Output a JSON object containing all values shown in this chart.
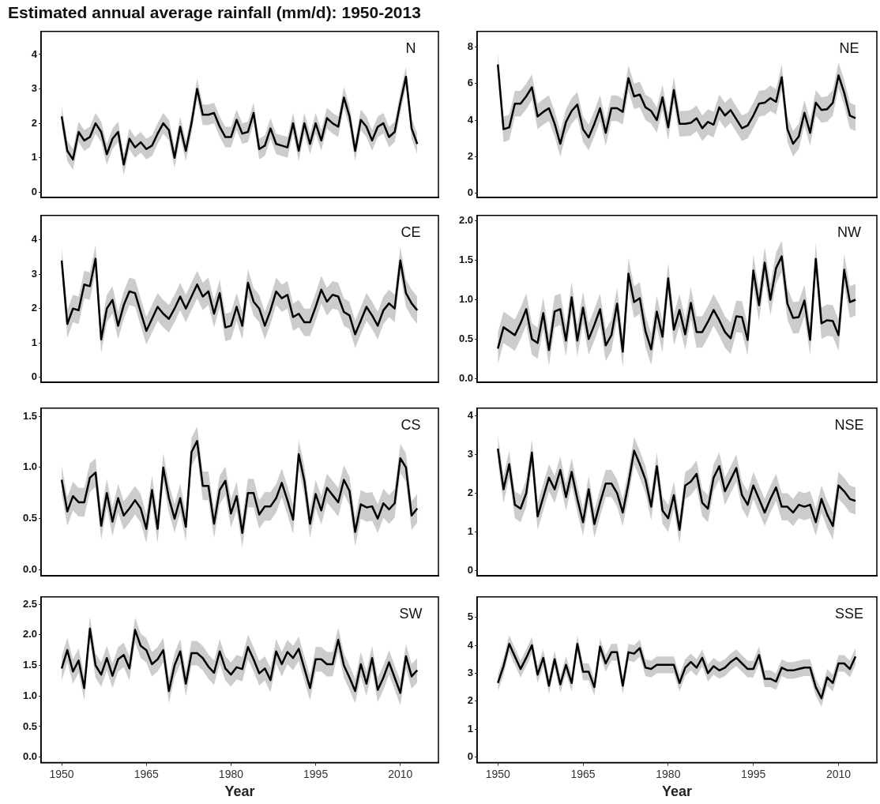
{
  "chart_data": [
    {
      "type": "line",
      "title": "Estimated annual average rainfall (mm/d): 1950-2013",
      "annotations": [
        "N"
      ],
      "tick_labels": "y",
      "xlim": [
        1946.35,
        2016.75
      ],
      "xticks": [
        1950,
        1965,
        1980,
        1995,
        2010
      ],
      "ylim": [
        -0.16,
        4.67
      ],
      "yticks": [
        0,
        1,
        2,
        3,
        4
      ],
      "x": [
        1950,
        1951,
        1952,
        1953,
        1954,
        1955,
        1956,
        1957,
        1958,
        1959,
        1960,
        1961,
        1962,
        1963,
        1964,
        1965,
        1966,
        1967,
        1968,
        1969,
        1970,
        1971,
        1972,
        1973,
        1974,
        1975,
        1976,
        1977,
        1978,
        1979,
        1980,
        1981,
        1982,
        1983,
        1984,
        1985,
        1986,
        1987,
        1988,
        1989,
        1990,
        1991,
        1992,
        1993,
        1994,
        1995,
        1996,
        1997,
        1998,
        1999,
        2000,
        2001,
        2002,
        2003,
        2004,
        2005,
        2006,
        2007,
        2008,
        2009,
        2010,
        2011,
        2012,
        2013
      ],
      "series": [
        {
          "color": "#000000",
          "values": [
            2.2,
            1.2,
            0.95,
            1.75,
            1.5,
            1.6,
            2.0,
            1.75,
            1.1,
            1.55,
            1.75,
            0.8,
            1.55,
            1.3,
            1.45,
            1.25,
            1.35,
            1.7,
            2.0,
            1.8,
            1.0,
            1.9,
            1.2,
            2.0,
            3.0,
            2.25,
            2.25,
            2.3,
            1.9,
            1.6,
            1.6,
            2.1,
            1.7,
            1.75,
            2.3,
            1.25,
            1.35,
            1.85,
            1.4,
            1.35,
            1.3,
            2.0,
            1.2,
            2.0,
            1.4,
            2.0,
            1.5,
            2.15,
            2.0,
            1.9,
            2.75,
            2.2,
            1.2,
            2.1,
            1.9,
            1.5,
            1.9,
            2.0,
            1.6,
            1.75,
            2.6,
            3.35,
            1.85,
            1.4
          ],
          "lower": [
            1.9,
            0.9,
            0.65,
            1.45,
            1.2,
            1.3,
            1.7,
            1.45,
            0.8,
            1.25,
            1.45,
            0.5,
            1.25,
            1.0,
            1.15,
            0.95,
            1.05,
            1.4,
            1.7,
            1.5,
            0.7,
            1.6,
            0.9,
            1.7,
            2.7,
            1.95,
            1.95,
            2.0,
            1.6,
            1.3,
            1.3,
            1.8,
            1.4,
            1.45,
            2.0,
            0.95,
            1.05,
            1.55,
            1.1,
            1.05,
            1.0,
            1.7,
            0.9,
            1.7,
            1.1,
            1.7,
            1.2,
            1.85,
            1.7,
            1.6,
            2.45,
            1.9,
            0.9,
            1.8,
            1.6,
            1.2,
            1.6,
            1.7,
            1.3,
            1.45,
            2.3,
            3.05,
            1.55,
            1.1
          ],
          "upper": [
            2.5,
            1.5,
            1.25,
            2.05,
            1.8,
            1.9,
            2.3,
            2.05,
            1.4,
            1.85,
            2.05,
            1.1,
            1.85,
            1.6,
            1.75,
            1.55,
            1.65,
            2.0,
            2.3,
            2.1,
            1.3,
            2.2,
            1.5,
            2.3,
            3.3,
            2.55,
            2.55,
            2.6,
            2.2,
            1.9,
            1.9,
            2.4,
            2.0,
            2.05,
            2.6,
            1.55,
            1.65,
            2.15,
            1.7,
            1.65,
            1.6,
            2.3,
            1.5,
            2.3,
            1.7,
            2.3,
            1.8,
            2.45,
            2.3,
            2.2,
            3.05,
            2.5,
            1.5,
            2.4,
            2.2,
            1.8,
            2.2,
            2.3,
            1.9,
            2.05,
            2.9,
            3.65,
            2.15,
            1.7
          ]
        }
      ]
    },
    {
      "type": "line",
      "annotations": [
        "NE"
      ],
      "tick_labels": "y",
      "xlim": [
        1946.35,
        2016.75
      ],
      "xticks": [
        1950,
        1965,
        1980,
        1995,
        2010
      ],
      "ylim": [
        -0.25,
        8.86
      ],
      "yticks": [
        0,
        2,
        4,
        6,
        8
      ],
      "x": [
        1950,
        1951,
        1952,
        1953,
        1954,
        1955,
        1956,
        1957,
        1958,
        1959,
        1960,
        1961,
        1962,
        1963,
        1964,
        1965,
        1966,
        1967,
        1968,
        1969,
        1970,
        1971,
        1972,
        1973,
        1974,
        1975,
        1976,
        1977,
        1978,
        1979,
        1980,
        1981,
        1982,
        1983,
        1984,
        1985,
        1986,
        1987,
        1988,
        1989,
        1990,
        1991,
        1992,
        1993,
        1994,
        1995,
        1996,
        1997,
        1998,
        1999,
        2000,
        2001,
        2002,
        2003,
        2004,
        2005,
        2006,
        2007,
        2008,
        2009,
        2010,
        2011,
        2012,
        2013
      ],
      "series": [
        {
          "color": "#000000",
          "values": [
            7.05,
            3.5,
            3.6,
            4.9,
            4.9,
            5.3,
            5.8,
            4.2,
            4.45,
            4.65,
            3.8,
            2.7,
            3.9,
            4.5,
            4.85,
            3.5,
            3.05,
            3.8,
            4.65,
            3.3,
            4.65,
            4.65,
            4.45,
            6.3,
            5.3,
            5.4,
            4.7,
            4.5,
            4.0,
            5.25,
            3.6,
            5.65,
            3.8,
            3.8,
            3.85,
            4.1,
            3.55,
            3.9,
            3.75,
            4.7,
            4.25,
            4.55,
            4.05,
            3.55,
            3.7,
            4.25,
            4.9,
            4.95,
            5.2,
            5.0,
            6.35,
            3.5,
            2.7,
            3.1,
            4.4,
            3.3,
            4.95,
            4.55,
            4.6,
            4.95,
            6.45,
            5.5,
            4.25,
            4.1
          ],
          "lower": [
            6.35,
            2.8,
            2.9,
            4.2,
            4.2,
            4.6,
            5.1,
            3.5,
            3.75,
            3.95,
            3.1,
            2.0,
            3.2,
            3.8,
            4.15,
            2.8,
            2.35,
            3.1,
            3.95,
            2.6,
            3.95,
            3.95,
            3.75,
            5.6,
            4.6,
            4.7,
            4.0,
            3.8,
            3.3,
            4.55,
            2.9,
            4.95,
            3.1,
            3.1,
            3.15,
            3.4,
            2.85,
            3.2,
            3.05,
            4.0,
            3.55,
            3.85,
            3.35,
            2.85,
            3.0,
            3.55,
            4.2,
            4.25,
            4.5,
            4.3,
            5.65,
            2.8,
            2.0,
            2.4,
            3.7,
            2.6,
            4.25,
            3.85,
            3.9,
            4.25,
            5.75,
            4.8,
            3.55,
            3.4
          ],
          "upper": [
            7.75,
            4.2,
            4.3,
            5.6,
            5.6,
            6.0,
            6.5,
            4.9,
            5.15,
            5.35,
            4.5,
            3.4,
            4.6,
            5.2,
            5.55,
            4.2,
            3.75,
            4.5,
            5.35,
            4.0,
            5.35,
            5.35,
            5.15,
            7.0,
            6.0,
            6.1,
            5.4,
            5.2,
            4.7,
            5.95,
            4.3,
            6.35,
            4.5,
            4.5,
            4.55,
            4.8,
            4.25,
            4.6,
            4.45,
            5.4,
            4.95,
            5.25,
            4.75,
            4.25,
            4.4,
            4.95,
            5.6,
            5.65,
            5.9,
            5.7,
            7.05,
            4.2,
            3.4,
            3.8,
            5.1,
            4.0,
            5.65,
            5.25,
            5.3,
            5.65,
            7.15,
            6.2,
            4.95,
            4.8
          ]
        }
      ]
    },
    {
      "type": "line",
      "annotations": [
        "CE"
      ],
      "tick_labels": "y",
      "xlim": [
        1946.35,
        2016.75
      ],
      "xticks": [
        1950,
        1965,
        1980,
        1995,
        2010
      ],
      "ylim": [
        -0.15,
        4.71
      ],
      "yticks": [
        0,
        1,
        2,
        3,
        4
      ],
      "x": [
        1950,
        1951,
        1952,
        1953,
        1954,
        1955,
        1956,
        1957,
        1958,
        1959,
        1960,
        1961,
        1962,
        1963,
        1964,
        1965,
        1966,
        1967,
        1968,
        1969,
        1970,
        1971,
        1972,
        1973,
        1974,
        1975,
        1976,
        1977,
        1978,
        1979,
        1980,
        1981,
        1982,
        1983,
        1984,
        1985,
        1986,
        1987,
        1988,
        1989,
        1990,
        1991,
        1992,
        1993,
        1994,
        1995,
        1996,
        1997,
        1998,
        1999,
        2000,
        2001,
        2002,
        2003,
        2004,
        2005,
        2006,
        2007,
        2008,
        2009,
        2010,
        2011,
        2012,
        2013
      ],
      "series": [
        {
          "color": "#000000",
          "values": [
            3.4,
            1.55,
            2.0,
            1.95,
            2.7,
            2.65,
            3.45,
            1.1,
            2.0,
            2.25,
            1.5,
            2.1,
            2.5,
            2.45,
            1.9,
            1.35,
            1.7,
            2.05,
            1.85,
            1.7,
            2.0,
            2.35,
            2.0,
            2.35,
            2.7,
            2.35,
            2.5,
            1.85,
            2.45,
            1.45,
            1.5,
            2.05,
            1.5,
            2.75,
            2.2,
            2.0,
            1.5,
            1.95,
            2.5,
            2.3,
            2.4,
            1.75,
            1.85,
            1.6,
            1.6,
            2.05,
            2.55,
            2.2,
            2.4,
            2.35,
            1.9,
            1.8,
            1.25,
            1.65,
            2.05,
            1.8,
            1.5,
            1.95,
            2.15,
            2.0,
            3.4,
            2.45,
            2.15,
            1.95
          ],
          "lower": [
            3.0,
            1.15,
            1.6,
            1.55,
            2.3,
            2.25,
            3.05,
            0.7,
            1.6,
            1.85,
            1.1,
            1.7,
            2.1,
            2.05,
            1.5,
            0.95,
            1.3,
            1.65,
            1.45,
            1.3,
            1.6,
            1.95,
            1.6,
            1.95,
            2.3,
            1.95,
            2.1,
            1.45,
            2.05,
            1.05,
            1.1,
            1.65,
            1.1,
            2.35,
            1.8,
            1.6,
            1.1,
            1.55,
            2.1,
            1.9,
            2.0,
            1.35,
            1.45,
            1.2,
            1.2,
            1.65,
            2.15,
            1.8,
            2.0,
            1.95,
            1.5,
            1.4,
            0.85,
            1.25,
            1.65,
            1.4,
            1.1,
            1.55,
            1.75,
            1.6,
            3.0,
            2.05,
            1.75,
            1.55
          ],
          "upper": [
            3.8,
            1.95,
            2.4,
            2.35,
            3.1,
            3.05,
            3.85,
            1.5,
            2.4,
            2.65,
            1.9,
            2.5,
            2.9,
            2.85,
            2.3,
            1.75,
            2.1,
            2.45,
            2.25,
            2.1,
            2.4,
            2.75,
            2.4,
            2.75,
            3.1,
            2.75,
            2.9,
            2.25,
            2.85,
            1.85,
            1.9,
            2.45,
            1.9,
            3.15,
            2.6,
            2.4,
            1.9,
            2.35,
            2.9,
            2.7,
            2.8,
            2.15,
            2.25,
            2.0,
            2.0,
            2.45,
            2.95,
            2.6,
            2.8,
            2.75,
            2.3,
            2.2,
            1.65,
            2.05,
            2.45,
            2.2,
            1.9,
            2.35,
            2.55,
            2.4,
            3.8,
            2.85,
            2.55,
            2.35
          ]
        }
      ]
    },
    {
      "type": "line",
      "annotations": [
        "NW"
      ],
      "tick_labels": "y",
      "xlim": [
        1946.35,
        2016.75
      ],
      "xticks": [
        1950,
        1965,
        1980,
        1995,
        2010
      ],
      "ylim": [
        -0.05,
        2.07
      ],
      "yticks": [
        {
          "value": 0,
          "label": "0.0"
        },
        0.5,
        {
          "value": 1,
          "label": "1.0"
        },
        1.5,
        {
          "value": 2,
          "label": "2.0"
        }
      ],
      "x": [
        1950,
        1951,
        1952,
        1953,
        1954,
        1955,
        1956,
        1957,
        1958,
        1959,
        1960,
        1961,
        1962,
        1963,
        1964,
        1965,
        1966,
        1967,
        1968,
        1969,
        1970,
        1971,
        1972,
        1973,
        1974,
        1975,
        1976,
        1977,
        1978,
        1979,
        1980,
        1981,
        1982,
        1983,
        1984,
        1985,
        1986,
        1987,
        1988,
        1989,
        1990,
        1991,
        1992,
        1993,
        1994,
        1995,
        1996,
        1997,
        1998,
        1999,
        2000,
        2001,
        2002,
        2003,
        2004,
        2005,
        2006,
        2007,
        2008,
        2009,
        2010,
        2011,
        2012,
        2013
      ],
      "series": [
        {
          "color": "#000000",
          "values": [
            0.38,
            0.65,
            0.6,
            0.55,
            0.7,
            0.88,
            0.5,
            0.45,
            0.83,
            0.36,
            0.85,
            0.88,
            0.48,
            1.03,
            0.48,
            0.9,
            0.5,
            0.68,
            0.88,
            0.42,
            0.55,
            0.95,
            0.34,
            1.33,
            0.97,
            1.02,
            0.6,
            0.37,
            0.85,
            0.53,
            1.27,
            0.62,
            0.87,
            0.56,
            0.96,
            0.59,
            0.59,
            0.72,
            0.87,
            0.74,
            0.59,
            0.51,
            0.79,
            0.78,
            0.49,
            1.37,
            0.93,
            1.47,
            1.0,
            1.4,
            1.55,
            0.95,
            0.77,
            0.78,
            0.99,
            0.49,
            1.52,
            0.7,
            0.74,
            0.73,
            0.55,
            1.38,
            0.97,
            1.0
          ],
          "lower": [
            0.18,
            0.45,
            0.4,
            0.35,
            0.5,
            0.68,
            0.3,
            0.25,
            0.63,
            0.16,
            0.65,
            0.68,
            0.28,
            0.83,
            0.28,
            0.7,
            0.3,
            0.48,
            0.68,
            0.22,
            0.35,
            0.75,
            0.14,
            1.13,
            0.77,
            0.82,
            0.4,
            0.17,
            0.65,
            0.33,
            1.07,
            0.42,
            0.67,
            0.36,
            0.76,
            0.39,
            0.39,
            0.52,
            0.67,
            0.54,
            0.39,
            0.31,
            0.59,
            0.58,
            0.29,
            1.17,
            0.73,
            1.27,
            0.8,
            1.2,
            1.35,
            0.75,
            0.57,
            0.58,
            0.79,
            0.29,
            1.32,
            0.5,
            0.54,
            0.53,
            0.35,
            1.18,
            0.77,
            0.8
          ],
          "upper": [
            0.58,
            0.85,
            0.8,
            0.75,
            0.9,
            1.08,
            0.7,
            0.65,
            1.03,
            0.56,
            1.05,
            1.08,
            0.68,
            1.23,
            0.68,
            1.1,
            0.7,
            0.88,
            1.08,
            0.62,
            0.75,
            1.15,
            0.54,
            1.53,
            1.17,
            1.22,
            0.8,
            0.57,
            1.05,
            0.73,
            1.47,
            0.82,
            1.07,
            0.76,
            1.16,
            0.79,
            0.79,
            0.92,
            1.07,
            0.94,
            0.79,
            0.71,
            0.99,
            0.98,
            0.69,
            1.57,
            1.13,
            1.67,
            1.2,
            1.6,
            1.75,
            1.15,
            0.97,
            0.98,
            1.19,
            0.69,
            1.72,
            0.9,
            0.94,
            0.93,
            0.75,
            1.58,
            1.17,
            1.2
          ]
        }
      ]
    },
    {
      "type": "line",
      "annotations": [
        "CS"
      ],
      "tick_labels": "y",
      "xlim": [
        1946.35,
        2016.75
      ],
      "xticks": [
        1950,
        1965,
        1980,
        1995,
        2010
      ],
      "ylim": [
        -0.06,
        1.58
      ],
      "yticks": [
        {
          "value": 0,
          "label": "0.0"
        },
        0.5,
        {
          "value": 1,
          "label": "1.0"
        },
        1.5
      ],
      "x": [
        1950,
        1951,
        1952,
        1953,
        1954,
        1955,
        1956,
        1957,
        1958,
        1959,
        1960,
        1961,
        1962,
        1963,
        1964,
        1965,
        1966,
        1967,
        1968,
        1969,
        1970,
        1971,
        1972,
        1973,
        1974,
        1975,
        1976,
        1977,
        1978,
        1979,
        1980,
        1981,
        1982,
        1983,
        1984,
        1985,
        1986,
        1987,
        1988,
        1989,
        1990,
        1991,
        1992,
        1993,
        1994,
        1995,
        1996,
        1997,
        1998,
        1999,
        2000,
        2001,
        2002,
        2003,
        2004,
        2005,
        2006,
        2007,
        2008,
        2009,
        2010,
        2011,
        2012,
        2013
      ],
      "series": [
        {
          "color": "#000000",
          "values": [
            0.88,
            0.57,
            0.72,
            0.66,
            0.66,
            0.9,
            0.95,
            0.43,
            0.75,
            0.47,
            0.7,
            0.53,
            0.6,
            0.68,
            0.6,
            0.4,
            0.78,
            0.4,
            1.0,
            0.7,
            0.5,
            0.7,
            0.42,
            1.15,
            1.26,
            0.82,
            0.82,
            0.45,
            0.78,
            0.87,
            0.55,
            0.72,
            0.36,
            0.75,
            0.75,
            0.54,
            0.62,
            0.62,
            0.7,
            0.85,
            0.68,
            0.49,
            1.13,
            0.87,
            0.45,
            0.74,
            0.58,
            0.8,
            0.73,
            0.66,
            0.88,
            0.77,
            0.37,
            0.64,
            0.61,
            0.62,
            0.5,
            0.65,
            0.59,
            0.65,
            1.09,
            1.0,
            0.53,
            0.6
          ],
          "lower": [
            0.74,
            0.43,
            0.58,
            0.52,
            0.52,
            0.76,
            0.81,
            0.29,
            0.61,
            0.33,
            0.56,
            0.39,
            0.46,
            0.54,
            0.46,
            0.26,
            0.64,
            0.26,
            0.86,
            0.56,
            0.36,
            0.56,
            0.28,
            1.01,
            1.12,
            0.68,
            0.68,
            0.31,
            0.64,
            0.73,
            0.41,
            0.58,
            0.22,
            0.61,
            0.61,
            0.4,
            0.48,
            0.48,
            0.56,
            0.71,
            0.54,
            0.35,
            0.99,
            0.73,
            0.31,
            0.6,
            0.44,
            0.66,
            0.59,
            0.52,
            0.74,
            0.63,
            0.23,
            0.5,
            0.47,
            0.48,
            0.36,
            0.51,
            0.45,
            0.51,
            0.95,
            0.86,
            0.39,
            0.46
          ],
          "upper": [
            1.02,
            0.71,
            0.86,
            0.8,
            0.8,
            1.04,
            1.09,
            0.57,
            0.89,
            0.61,
            0.84,
            0.67,
            0.74,
            0.82,
            0.74,
            0.54,
            0.92,
            0.54,
            1.14,
            0.84,
            0.64,
            0.84,
            0.56,
            1.29,
            1.4,
            0.96,
            0.96,
            0.59,
            0.92,
            1.01,
            0.69,
            0.86,
            0.5,
            0.89,
            0.89,
            0.68,
            0.76,
            0.76,
            0.84,
            0.99,
            0.82,
            0.63,
            1.27,
            1.01,
            0.59,
            0.88,
            0.72,
            0.94,
            0.87,
            0.8,
            1.02,
            0.91,
            0.51,
            0.78,
            0.75,
            0.76,
            0.64,
            0.79,
            0.73,
            0.79,
            1.23,
            1.14,
            0.67,
            0.74
          ]
        }
      ]
    },
    {
      "type": "line",
      "annotations": [
        "NSE"
      ],
      "tick_labels": "y",
      "xlim": [
        1946.35,
        2016.75
      ],
      "xticks": [
        1950,
        1965,
        1980,
        1995,
        2010
      ],
      "ylim": [
        -0.14,
        4.2
      ],
      "yticks": [
        0,
        1,
        2,
        3,
        4
      ],
      "x": [
        1950,
        1951,
        1952,
        1953,
        1954,
        1955,
        1956,
        1957,
        1958,
        1959,
        1960,
        1961,
        1962,
        1963,
        1964,
        1965,
        1966,
        1967,
        1968,
        1969,
        1970,
        1971,
        1972,
        1973,
        1974,
        1975,
        1976,
        1977,
        1978,
        1979,
        1980,
        1981,
        1982,
        1983,
        1984,
        1985,
        1986,
        1987,
        1988,
        1989,
        1990,
        1991,
        1992,
        1993,
        1994,
        1995,
        1996,
        1997,
        1998,
        1999,
        2000,
        2001,
        2002,
        2003,
        2004,
        2005,
        2006,
        2007,
        2008,
        2009,
        2010,
        2011,
        2012,
        2013
      ],
      "series": [
        {
          "color": "#000000",
          "values": [
            3.15,
            2.1,
            2.75,
            1.7,
            1.6,
            2.0,
            3.05,
            1.4,
            1.9,
            2.4,
            2.1,
            2.6,
            1.9,
            2.55,
            1.85,
            1.25,
            2.1,
            1.2,
            1.75,
            2.25,
            2.25,
            2.0,
            1.5,
            2.25,
            3.1,
            2.75,
            2.35,
            1.65,
            2.7,
            1.55,
            1.35,
            1.95,
            1.05,
            2.2,
            2.3,
            2.5,
            1.75,
            1.6,
            2.4,
            2.7,
            2.05,
            2.35,
            2.65,
            1.95,
            1.7,
            2.2,
            1.85,
            1.5,
            1.85,
            2.15,
            1.65,
            1.65,
            1.5,
            1.7,
            1.65,
            1.7,
            1.25,
            1.85,
            1.45,
            1.15,
            2.2,
            2.05,
            1.85,
            1.8
          ],
          "lower": [
            2.8,
            1.75,
            2.4,
            1.35,
            1.25,
            1.65,
            2.7,
            1.05,
            1.55,
            2.05,
            1.75,
            2.25,
            1.55,
            2.2,
            1.5,
            0.9,
            1.75,
            0.85,
            1.4,
            1.9,
            1.9,
            1.65,
            1.15,
            1.9,
            2.75,
            2.4,
            2.0,
            1.3,
            2.35,
            1.2,
            1.0,
            1.6,
            0.7,
            1.85,
            1.95,
            2.15,
            1.4,
            1.25,
            2.05,
            2.35,
            1.7,
            2.0,
            2.3,
            1.6,
            1.35,
            1.85,
            1.5,
            1.15,
            1.5,
            1.8,
            1.3,
            1.3,
            1.15,
            1.35,
            1.3,
            1.35,
            0.9,
            1.5,
            1.1,
            0.8,
            1.85,
            1.7,
            1.5,
            1.45
          ],
          "upper": [
            3.5,
            2.45,
            3.1,
            2.05,
            1.95,
            2.35,
            3.4,
            1.75,
            2.25,
            2.75,
            2.45,
            2.95,
            2.25,
            2.9,
            2.2,
            1.6,
            2.45,
            1.55,
            2.1,
            2.6,
            2.6,
            2.35,
            1.85,
            2.6,
            3.45,
            3.1,
            2.7,
            2.0,
            3.05,
            1.9,
            1.7,
            2.3,
            1.4,
            2.55,
            2.65,
            2.85,
            2.1,
            1.95,
            2.75,
            3.05,
            2.4,
            2.7,
            3.0,
            2.3,
            2.05,
            2.55,
            2.2,
            1.85,
            2.2,
            2.5,
            2.0,
            2.0,
            1.85,
            2.05,
            2.0,
            2.05,
            1.6,
            2.2,
            1.8,
            1.5,
            2.55,
            2.4,
            2.2,
            2.15
          ]
        }
      ]
    },
    {
      "type": "line",
      "annotations": [
        "SW"
      ],
      "xlabel": "Year",
      "xlim": [
        1946.35,
        2016.75
      ],
      "xticks": [
        1950,
        1965,
        1980,
        1995,
        2010
      ],
      "ylim": [
        -0.09,
        2.62
      ],
      "yticks": [
        {
          "value": 0,
          "label": "0.0"
        },
        0.5,
        {
          "value": 1,
          "label": "1.0"
        },
        1.5,
        {
          "value": 2,
          "label": "2.0"
        },
        2.5
      ],
      "x": [
        1950,
        1951,
        1952,
        1953,
        1954,
        1955,
        1956,
        1957,
        1958,
        1959,
        1960,
        1961,
        1962,
        1963,
        1964,
        1965,
        1966,
        1967,
        1968,
        1969,
        1970,
        1971,
        1972,
        1973,
        1974,
        1975,
        1976,
        1977,
        1978,
        1979,
        1980,
        1981,
        1982,
        1983,
        1984,
        1985,
        1986,
        1987,
        1988,
        1989,
        1990,
        1991,
        1992,
        1993,
        1994,
        1995,
        1996,
        1997,
        1998,
        1999,
        2000,
        2001,
        2002,
        2003,
        2004,
        2005,
        2006,
        2007,
        2008,
        2009,
        2010,
        2011,
        2012,
        2013
      ],
      "series": [
        {
          "color": "#000000",
          "values": [
            1.45,
            1.75,
            1.4,
            1.58,
            1.13,
            2.1,
            1.5,
            1.35,
            1.62,
            1.33,
            1.6,
            1.67,
            1.45,
            2.08,
            1.82,
            1.75,
            1.52,
            1.6,
            1.75,
            1.08,
            1.5,
            1.73,
            1.2,
            1.7,
            1.7,
            1.62,
            1.48,
            1.38,
            1.73,
            1.45,
            1.35,
            1.47,
            1.44,
            1.8,
            1.6,
            1.37,
            1.45,
            1.26,
            1.73,
            1.52,
            1.72,
            1.62,
            1.77,
            1.45,
            1.13,
            1.6,
            1.6,
            1.52,
            1.52,
            1.92,
            1.5,
            1.3,
            1.08,
            1.52,
            1.2,
            1.62,
            1.1,
            1.3,
            1.55,
            1.3,
            1.05,
            1.65,
            1.32,
            1.42
          ],
          "lower": [
            1.25,
            1.55,
            1.2,
            1.38,
            0.93,
            1.9,
            1.3,
            1.15,
            1.42,
            1.13,
            1.4,
            1.47,
            1.25,
            1.88,
            1.62,
            1.55,
            1.32,
            1.4,
            1.55,
            0.88,
            1.3,
            1.53,
            1.0,
            1.5,
            1.5,
            1.42,
            1.28,
            1.18,
            1.53,
            1.25,
            1.15,
            1.27,
            1.24,
            1.6,
            1.4,
            1.17,
            1.25,
            1.06,
            1.53,
            1.32,
            1.52,
            1.42,
            1.57,
            1.25,
            0.93,
            1.4,
            1.4,
            1.32,
            1.32,
            1.72,
            1.3,
            1.1,
            0.88,
            1.32,
            1.0,
            1.42,
            0.9,
            1.1,
            1.35,
            1.1,
            0.85,
            1.45,
            1.12,
            1.22
          ],
          "upper": [
            1.65,
            1.95,
            1.6,
            1.78,
            1.33,
            2.3,
            1.7,
            1.55,
            1.82,
            1.53,
            1.8,
            1.87,
            1.65,
            2.28,
            2.02,
            1.95,
            1.72,
            1.8,
            1.95,
            1.28,
            1.7,
            1.93,
            1.4,
            1.9,
            1.9,
            1.82,
            1.68,
            1.58,
            1.93,
            1.65,
            1.55,
            1.67,
            1.64,
            2.0,
            1.8,
            1.57,
            1.65,
            1.46,
            1.93,
            1.72,
            1.92,
            1.82,
            1.97,
            1.65,
            1.33,
            1.8,
            1.8,
            1.72,
            1.72,
            2.12,
            1.7,
            1.5,
            1.28,
            1.72,
            1.4,
            1.82,
            1.3,
            1.5,
            1.75,
            1.5,
            1.25,
            1.85,
            1.52,
            1.62
          ]
        }
      ]
    },
    {
      "type": "line",
      "annotations": [
        "SSE"
      ],
      "xlabel": "Year",
      "xlim": [
        1946.35,
        2016.75
      ],
      "xticks": [
        1950,
        1965,
        1980,
        1995,
        2010
      ],
      "ylim": [
        -0.2,
        5.73
      ],
      "yticks": [
        0,
        1,
        2,
        3,
        4,
        5
      ],
      "x": [
        1950,
        1951,
        1952,
        1953,
        1954,
        1955,
        1956,
        1957,
        1958,
        1959,
        1960,
        1961,
        1962,
        1963,
        1964,
        1965,
        1966,
        1967,
        1968,
        1969,
        1970,
        1971,
        1972,
        1973,
        1974,
        1975,
        1976,
        1977,
        1978,
        1979,
        1980,
        1981,
        1982,
        1983,
        1984,
        1985,
        1986,
        1987,
        1988,
        1989,
        1990,
        1991,
        1992,
        1993,
        1994,
        1995,
        1996,
        1997,
        1998,
        1999,
        2000,
        2001,
        2002,
        2003,
        2004,
        2005,
        2006,
        2007,
        2008,
        2009,
        2010,
        2011,
        2012,
        2013
      ],
      "series": [
        {
          "color": "#000000",
          "values": [
            2.65,
            3.25,
            4.05,
            3.6,
            3.15,
            3.55,
            4.0,
            2.95,
            3.55,
            2.55,
            3.5,
            2.6,
            3.3,
            2.65,
            4.05,
            3.05,
            3.05,
            2.5,
            3.95,
            3.35,
            3.75,
            3.75,
            2.55,
            3.75,
            3.7,
            3.9,
            3.2,
            3.15,
            3.3,
            3.3,
            3.3,
            3.3,
            2.65,
            3.2,
            3.4,
            3.2,
            3.55,
            3.0,
            3.25,
            3.1,
            3.2,
            3.4,
            3.55,
            3.35,
            3.15,
            3.15,
            3.65,
            2.8,
            2.8,
            2.7,
            3.2,
            3.1,
            3.1,
            3.15,
            3.2,
            3.2,
            2.5,
            2.1,
            2.85,
            2.65,
            3.35,
            3.35,
            3.15,
            3.6
          ],
          "lower": [
            2.35,
            2.95,
            3.75,
            3.3,
            2.85,
            3.25,
            3.7,
            2.65,
            3.25,
            2.25,
            3.2,
            2.3,
            3.0,
            2.35,
            3.75,
            2.75,
            2.75,
            2.2,
            3.65,
            3.05,
            3.45,
            3.45,
            2.25,
            3.45,
            3.4,
            3.6,
            2.9,
            2.85,
            3.0,
            3.0,
            3.0,
            3.0,
            2.35,
            2.9,
            3.1,
            2.9,
            3.25,
            2.7,
            2.95,
            2.8,
            2.9,
            3.1,
            3.25,
            3.05,
            2.85,
            2.85,
            3.35,
            2.5,
            2.5,
            2.4,
            2.9,
            2.8,
            2.8,
            2.85,
            2.9,
            2.9,
            2.2,
            1.8,
            2.55,
            2.35,
            3.05,
            3.05,
            2.85,
            3.3
          ],
          "upper": [
            2.95,
            3.55,
            4.35,
            3.9,
            3.45,
            3.85,
            4.3,
            3.25,
            3.85,
            2.85,
            3.8,
            2.9,
            3.6,
            2.95,
            4.35,
            3.35,
            3.35,
            2.8,
            4.25,
            3.65,
            4.05,
            4.05,
            2.85,
            4.05,
            4.0,
            4.2,
            3.5,
            3.45,
            3.6,
            3.6,
            3.6,
            3.6,
            2.95,
            3.5,
            3.7,
            3.5,
            3.85,
            3.3,
            3.55,
            3.4,
            3.5,
            3.7,
            3.85,
            3.65,
            3.45,
            3.45,
            3.95,
            3.1,
            3.1,
            3.0,
            3.5,
            3.4,
            3.4,
            3.45,
            3.5,
            3.5,
            2.8,
            2.4,
            3.15,
            2.95,
            3.65,
            3.65,
            3.45,
            3.9
          ]
        }
      ]
    }
  ]
}
